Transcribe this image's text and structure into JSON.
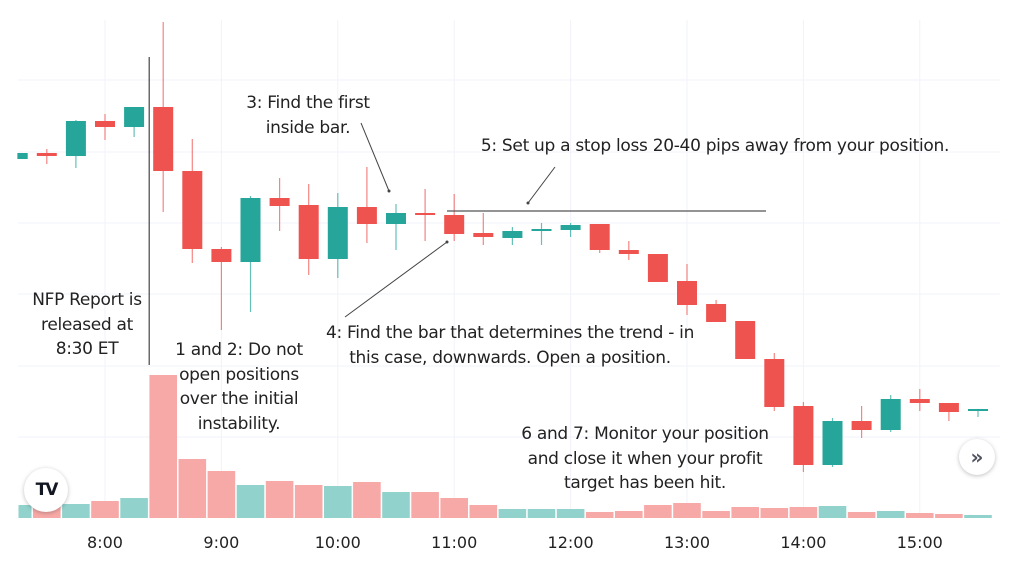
{
  "chart_data": {
    "type": "candlestick",
    "interval": "15 minutes",
    "colors": {
      "up": "#26a69a",
      "down": "#ef5350",
      "up_volume": "#92d2cc",
      "down_volume": "#f7a9a7",
      "grid": "#f0f3fa",
      "annotation": "#222222"
    },
    "x_tick_labels": [
      "8:00",
      "9:00",
      "10:00",
      "11:00",
      "12:00",
      "13:00",
      "14:00",
      "15:00"
    ],
    "y_axis": "not shown (relative price units)",
    "grid": true,
    "candles": [
      {
        "time": "7:15",
        "open": 341,
        "high": 347,
        "low": 341,
        "close": 347,
        "volume": 13
      },
      {
        "time": "7:30",
        "open": 347,
        "high": 351,
        "low": 336,
        "close": 344,
        "volume": 13
      },
      {
        "time": "7:45",
        "open": 344,
        "high": 380,
        "low": 332,
        "close": 379,
        "volume": 14
      },
      {
        "time": "8:00",
        "open": 379,
        "high": 386,
        "low": 360,
        "close": 373,
        "volume": 17
      },
      {
        "time": "8:15",
        "open": 373,
        "high": 393,
        "low": 363,
        "close": 393,
        "volume": 20
      },
      {
        "time": "8:30",
        "open": 393,
        "high": 478,
        "low": 288,
        "close": 329,
        "volume": 143
      },
      {
        "time": "8:45",
        "open": 329,
        "high": 361,
        "low": 237,
        "close": 251,
        "volume": 59
      },
      {
        "time": "9:00",
        "open": 251,
        "high": 253,
        "low": 170,
        "close": 238,
        "volume": 47
      },
      {
        "time": "9:15",
        "open": 238,
        "high": 304,
        "low": 188,
        "close": 302,
        "volume": 33
      },
      {
        "time": "9:30",
        "open": 302,
        "high": 322,
        "low": 269,
        "close": 294,
        "volume": 37
      },
      {
        "time": "9:45",
        "open": 295,
        "high": 316,
        "low": 225,
        "close": 241,
        "volume": 33
      },
      {
        "time": "10:00",
        "open": 241,
        "high": 307,
        "low": 222,
        "close": 293,
        "volume": 32
      },
      {
        "time": "10:15",
        "open": 293,
        "high": 333,
        "low": 257,
        "close": 276,
        "volume": 36
      },
      {
        "time": "10:30",
        "open": 276,
        "high": 296,
        "low": 250,
        "close": 287,
        "volume": 26
      },
      {
        "time": "10:45",
        "open": 287,
        "high": 311,
        "low": 259,
        "close": 285,
        "volume": 26
      },
      {
        "time": "11:00",
        "open": 285,
        "high": 306,
        "low": 259,
        "close": 266,
        "volume": 20
      },
      {
        "time": "11:15",
        "open": 267,
        "high": 287,
        "low": 255,
        "close": 263,
        "volume": 13
      },
      {
        "time": "11:30",
        "open": 262,
        "high": 273,
        "low": 255,
        "close": 269,
        "volume": 9
      },
      {
        "time": "11:45",
        "open": 269,
        "high": 277,
        "low": 255,
        "close": 271,
        "volume": 9
      },
      {
        "time": "12:00",
        "open": 270,
        "high": 277,
        "low": 263,
        "close": 275,
        "volume": 9
      },
      {
        "time": "12:15",
        "open": 276,
        "high": 276,
        "low": 247,
        "close": 250,
        "volume": 6
      },
      {
        "time": "12:30",
        "open": 250,
        "high": 259,
        "low": 240,
        "close": 246,
        "volume": 7
      },
      {
        "time": "12:45",
        "open": 246,
        "high": 246,
        "low": 218,
        "close": 218,
        "volume": 13
      },
      {
        "time": "13:00",
        "open": 219,
        "high": 236,
        "low": 185,
        "close": 195,
        "volume": 15
      },
      {
        "time": "13:15",
        "open": 196,
        "high": 200,
        "low": 178,
        "close": 178,
        "volume": 7
      },
      {
        "time": "13:30",
        "open": 179,
        "high": 179,
        "low": 141,
        "close": 141,
        "volume": 11
      },
      {
        "time": "13:45",
        "open": 141,
        "high": 147,
        "low": 89,
        "close": 93,
        "volume": 10
      },
      {
        "time": "14:00",
        "open": 94,
        "high": 98,
        "low": 28,
        "close": 35,
        "volume": 11
      },
      {
        "time": "14:15",
        "open": 35,
        "high": 82,
        "low": 33,
        "close": 79,
        "volume": 12
      },
      {
        "time": "14:30",
        "open": 79,
        "high": 94,
        "low": 62,
        "close": 70,
        "volume": 6
      },
      {
        "time": "14:45",
        "open": 70,
        "high": 105,
        "low": 68,
        "close": 101,
        "volume": 7
      },
      {
        "time": "15:00",
        "open": 101,
        "high": 111,
        "low": 89,
        "close": 97,
        "volume": 5
      },
      {
        "time": "15:15",
        "open": 97,
        "high": 97,
        "low": 79,
        "close": 88,
        "volume": 4
      },
      {
        "time": "15:30",
        "open": 89,
        "high": 91,
        "low": 83,
        "close": 91,
        "volume": 3
      }
    ],
    "annotations": {
      "nfp": [
        "NFP Report is",
        "released at",
        "8:30 ET"
      ],
      "step12": [
        "1 and 2: Do not",
        "open positions",
        "over the initial",
        "instability."
      ],
      "step3": [
        "3: Find the first",
        "inside bar."
      ],
      "step4": [
        "4: Find the bar that determines the trend - in",
        "this case, downwards. Open a position."
      ],
      "step5": [
        "5: Set up a stop loss 20-40 pips away from your position."
      ],
      "step67": [
        "6 and 7: Monitor your position",
        "and close it when your profit",
        "target has been hit."
      ]
    },
    "nfp_marker_time": "8:30",
    "stop_loss_level": 289
  },
  "ui": {
    "logo": "TV",
    "scroll_icon": "double-chevron-right-icon",
    "scroll_glyph": "»"
  }
}
